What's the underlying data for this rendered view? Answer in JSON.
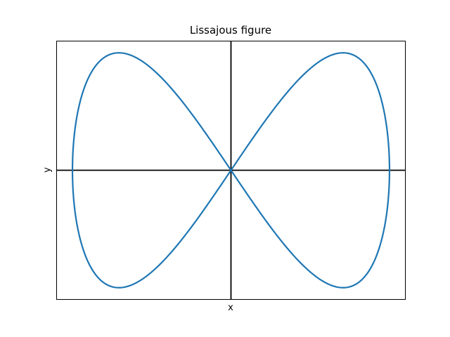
{
  "chart_data": {
    "type": "line",
    "title": "Lissajous figure",
    "xlabel": "x",
    "ylabel": "y",
    "xlim": [
      -1.1,
      1.1
    ],
    "ylim": [
      -1.1,
      1.1
    ],
    "curve": {
      "x_function": "sin(t)",
      "y_function": "sin(2t)",
      "t_range": [
        0,
        6.283185
      ],
      "samples": 400
    },
    "ticks": "none",
    "grid": false,
    "axis_lines_at_origin": true,
    "colors": {
      "series": "#1f77b4",
      "axes": "#000000"
    }
  }
}
